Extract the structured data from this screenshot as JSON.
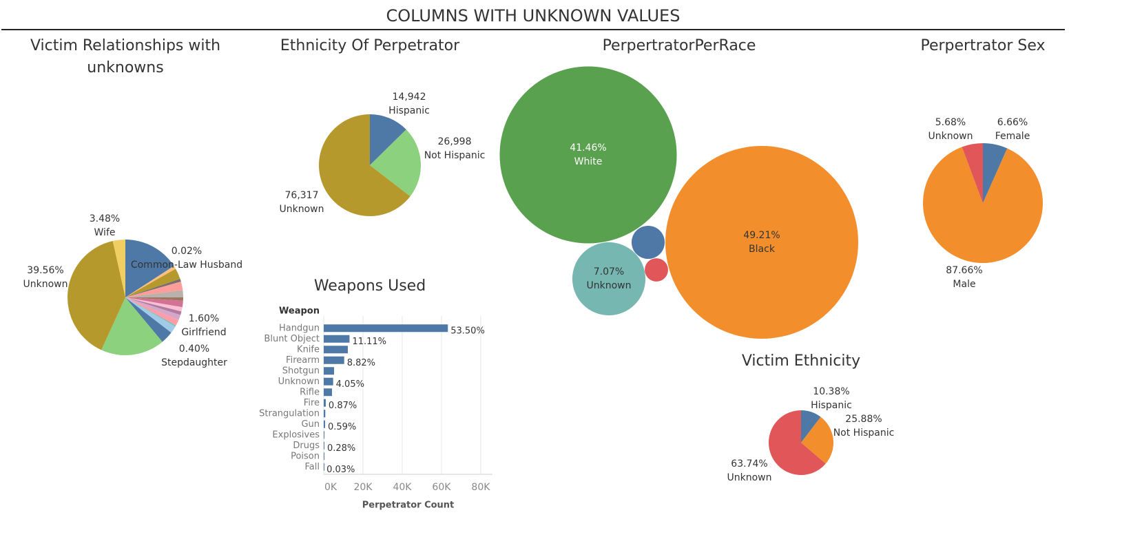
{
  "title": "COLUMNS WITH UNKNOWN VALUES",
  "chart_data": [
    {
      "type": "pie",
      "title": "Victim Relationships with unknowns",
      "categories": [
        null,
        null,
        "Common-Law Husband",
        null,
        null,
        null,
        null,
        null,
        null,
        null,
        null,
        null,
        "Girlfriend",
        "Stepdaughter",
        null,
        null,
        null,
        "Unknown",
        "Wife"
      ],
      "values": [
        15.8,
        0.9,
        0.02,
        3.0,
        0.8,
        2.4,
        2.0,
        0.9,
        1.8,
        1.2,
        1.0,
        1.5,
        1.6,
        0.4,
        2.0,
        3.5,
        17.8,
        39.56,
        3.48
      ],
      "value_labels": [
        null,
        null,
        "0.02%",
        null,
        null,
        null,
        null,
        null,
        null,
        null,
        null,
        null,
        "1.60%",
        "0.40%",
        null,
        null,
        null,
        "39.56%",
        "3.48%"
      ],
      "colors": [
        "#4e79a7",
        "#ffbe7d",
        "#f28e2b",
        "#b6992d",
        "#79706e",
        "#ff9d9a",
        "#bab0ac",
        "#9d7660",
        "#d37295",
        "#fabfd2",
        "#b07aa1",
        "#d4a6c8",
        "#ff9da7",
        "#86bcb6",
        "#a0cbe8",
        "#4e79a7",
        "#8cd17d",
        "#b6992d",
        "#f1ce63"
      ]
    },
    {
      "type": "pie",
      "title": "Ethnicity Of Perpetrator",
      "categories": [
        "Hispanic",
        "Not Hispanic",
        "Unknown"
      ],
      "values": [
        14942,
        26998,
        76317
      ],
      "value_labels": [
        "14,942",
        "26,998",
        "76,317"
      ],
      "colors": [
        "#4e79a7",
        "#8cd17d",
        "#b6992d"
      ]
    },
    {
      "type": "bubble",
      "title": "PerpertratorPerRace",
      "categories": [
        "White",
        "Black",
        "Unknown",
        null,
        null
      ],
      "values": [
        41.46,
        49.21,
        7.07,
        1.45,
        0.72
      ],
      "value_labels": [
        "41.46%",
        "49.21%",
        "7.07%",
        null,
        null
      ],
      "colors": [
        "#59a14f",
        "#f28e2b",
        "#76b7b2",
        "#4e79a7",
        "#e15759"
      ]
    },
    {
      "type": "pie",
      "title": "Perpertrator Sex",
      "categories": [
        "Female",
        "Male",
        "Unknown"
      ],
      "values": [
        6.66,
        87.66,
        5.68
      ],
      "value_labels": [
        "6.66%",
        "87.66%",
        "5.68%"
      ],
      "colors": [
        "#4e79a7",
        "#f28e2b",
        "#e15759"
      ]
    },
    {
      "type": "bar",
      "title": "Weapons Used",
      "orientation": "horizontal",
      "category_header": "Weapon",
      "xlabel": "Perpetrator Count",
      "categories": [
        "Handgun",
        "Blunt Object",
        "Knife",
        "Firearm",
        "Shotgun",
        "Unknown",
        "Rifle",
        "Fire",
        "Strangulation",
        "Gun",
        "Explosives",
        "Drugs",
        "Poison",
        "Fall"
      ],
      "values": [
        63268,
        13138,
        12281,
        10430,
        5263,
        4789,
        4210,
        1029,
        800,
        698,
        50,
        331,
        100,
        35
      ],
      "value_labels": [
        "53.50%",
        "11.11%",
        null,
        "8.82%",
        null,
        "4.05%",
        null,
        "0.87%",
        null,
        "0.59%",
        null,
        "0.28%",
        null,
        "0.03%"
      ],
      "color": "#4e79a7",
      "xlim": [
        0,
        86000
      ],
      "xticks": [
        {
          "value": 0,
          "label": "0K"
        },
        {
          "value": 20000,
          "label": "20K"
        },
        {
          "value": 40000,
          "label": "40K"
        },
        {
          "value": 60000,
          "label": "60K"
        },
        {
          "value": 80000,
          "label": "80K"
        }
      ],
      "grid": true
    },
    {
      "type": "pie",
      "title": "Victim Ethnicity",
      "categories": [
        "Hispanic",
        "Not Hispanic",
        "Unknown"
      ],
      "values": [
        10.38,
        25.88,
        63.74
      ],
      "value_labels": [
        "10.38%",
        "25.88%",
        "63.74%"
      ],
      "colors": [
        "#4e79a7",
        "#f28e2b",
        "#e15759"
      ]
    }
  ]
}
